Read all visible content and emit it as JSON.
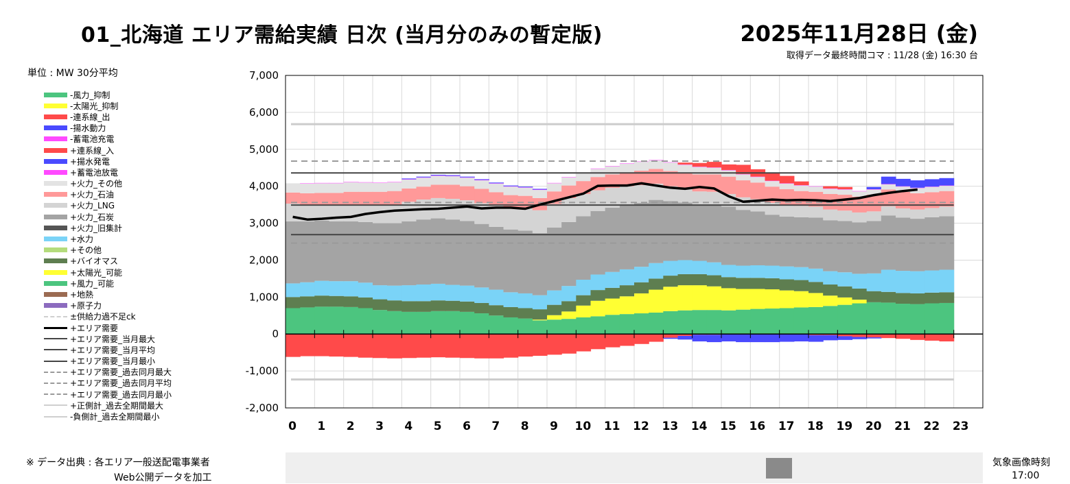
{
  "header": {
    "title": "01_北海道 エリア需給実績 日次 (当月分のみの暫定版)",
    "date": "2025年11月28日 (金)",
    "acquired": "取得データ最終時間コマ : 11/28 (金) 16:30 台",
    "unit": "単位 : MW 30分平均"
  },
  "legend": [
    {
      "label": "-風力_抑制",
      "color": "#4cc57f",
      "kind": "box"
    },
    {
      "label": "-太陽光_抑制",
      "color": "#ffff33",
      "kind": "box"
    },
    {
      "label": "-連系線_出",
      "color": "#ff4a4a",
      "kind": "box"
    },
    {
      "label": "-揚水動力",
      "color": "#4a4aff",
      "kind": "box"
    },
    {
      "label": "-蓄電池充電",
      "color": "#ff4aff",
      "kind": "box"
    },
    {
      "label": "+連系線_入",
      "color": "#ff4a4a",
      "kind": "box"
    },
    {
      "label": "+揚水発電",
      "color": "#4a4aff",
      "kind": "box"
    },
    {
      "label": "+蓄電池放電",
      "color": "#ff4aff",
      "kind": "box"
    },
    {
      "label": "+火力_その他",
      "color": "#e3e3e3",
      "kind": "box"
    },
    {
      "label": "+火力_石油",
      "color": "#ff9999",
      "kind": "box"
    },
    {
      "label": "+火力_LNG",
      "color": "#d4d4d4",
      "kind": "box"
    },
    {
      "label": "+火力_石炭",
      "color": "#a4a4a4",
      "kind": "box"
    },
    {
      "label": "+火力_旧集計",
      "color": "#555555",
      "kind": "box"
    },
    {
      "label": "+水力",
      "color": "#7ad3f7",
      "kind": "box"
    },
    {
      "label": "+その他",
      "color": "#b4dc7c",
      "kind": "box"
    },
    {
      "label": "+バイオマス",
      "color": "#5e7e50",
      "kind": "box"
    },
    {
      "label": "+太陽光_可能",
      "color": "#ffff33",
      "kind": "box"
    },
    {
      "label": "+風力_可能",
      "color": "#4cc57f",
      "kind": "box"
    },
    {
      "label": "+地熱",
      "color": "#9b6b52",
      "kind": "box"
    },
    {
      "label": "+原子力",
      "color": "#8c6bbf",
      "kind": "box"
    },
    {
      "label": "±供給力過不足ck",
      "color": "#cfcfcf",
      "kind": "dash",
      "width": 2
    },
    {
      "label": "+エリア需要",
      "color": "#000000",
      "kind": "line",
      "width": 3
    },
    {
      "label": "+エリア需要_当月最大",
      "color": "#444444",
      "kind": "line",
      "width": 2
    },
    {
      "label": "+エリア需要_当月平均",
      "color": "#444444",
      "kind": "line",
      "width": 2
    },
    {
      "label": "+エリア需要_当月最小",
      "color": "#444444",
      "kind": "line",
      "width": 2
    },
    {
      "label": "+エリア需要_過去同月最大",
      "color": "#999999",
      "kind": "dash",
      "width": 2
    },
    {
      "label": "+エリア需要_過去同月平均",
      "color": "#999999",
      "kind": "dash",
      "width": 2
    },
    {
      "label": "+エリア需要_過去同月最小",
      "color": "#999999",
      "kind": "dash",
      "width": 2
    },
    {
      "label": "+正側計_過去全期間最大",
      "color": "#cfcfcf",
      "kind": "line",
      "width": 2
    },
    {
      "label": "-負側計_過去全期間最小",
      "color": "#cfcfcf",
      "kind": "line",
      "width": 2
    }
  ],
  "footer": {
    "source_label": "※ データ出典 :   各エリア一般送配電事業者",
    "source_label2": "Web公開データを加工",
    "weather_label": "気象画像時刻",
    "weather_time": "17:00"
  },
  "chart_data": {
    "type": "area",
    "x_ticks": [
      "0",
      "1",
      "2",
      "3",
      "4",
      "5",
      "6",
      "7",
      "8",
      "9",
      "10",
      "11",
      "12",
      "13",
      "14",
      "15",
      "16",
      "17",
      "18",
      "19",
      "20",
      "21",
      "22",
      "23"
    ],
    "y_ticks": [
      "7,000",
      "6,000",
      "5,000",
      "4,000",
      "3,000",
      "2,000",
      "1,000",
      "0",
      "-1,000",
      "-2,000"
    ],
    "ylim": [
      -2000,
      7000
    ],
    "xlim": [
      0,
      24
    ],
    "slots_per_hour": 2,
    "stack_order": [
      "原子力",
      "地熱",
      "風力_可能",
      "太陽光_可能",
      "バイオマス",
      "その他",
      "水力",
      "火力_旧集計",
      "火力_石炭",
      "火力_LNG",
      "火力_石油",
      "火力_その他",
      "蓄電池放電",
      "揚水発電",
      "連系線_入"
    ],
    "series": [
      {
        "name": "+風力_可能",
        "color": "#4cc57f",
        "values": [
          700,
          720,
          740,
          740,
          730,
          700,
          650,
          620,
          600,
          600,
          620,
          620,
          600,
          560,
          500,
          450,
          420,
          370,
          390,
          410,
          450,
          480,
          520,
          540,
          560,
          580,
          620,
          640,
          650,
          650,
          640,
          660,
          680,
          690,
          700,
          720,
          730,
          760,
          790,
          830,
          860,
          850,
          820,
          810,
          830,
          840
        ]
      },
      {
        "name": "+太陽光_可能",
        "color": "#ffff33",
        "values": [
          0,
          0,
          0,
          0,
          0,
          0,
          0,
          0,
          0,
          0,
          0,
          0,
          0,
          0,
          0,
          0,
          0,
          20,
          120,
          200,
          320,
          420,
          440,
          480,
          540,
          620,
          660,
          680,
          670,
          640,
          600,
          560,
          540,
          520,
          480,
          440,
          380,
          280,
          200,
          100,
          0,
          0,
          0,
          0,
          0,
          0
        ]
      },
      {
        "name": "+バイオマス",
        "color": "#5e7e50",
        "values": [
          300,
          300,
          300,
          290,
          290,
          290,
          290,
          290,
          290,
          290,
          290,
          280,
          280,
          280,
          280,
          280,
          280,
          280,
          280,
          280,
          280,
          290,
          290,
          300,
          300,
          300,
          300,
          300,
          300,
          300,
          300,
          300,
          300,
          300,
          300,
          300,
          300,
          300,
          300,
          300,
          300,
          290,
          290,
          290,
          290,
          290
        ]
      },
      {
        "name": "+水力",
        "color": "#7ad3f7",
        "values": [
          370,
          380,
          400,
          400,
          410,
          400,
          380,
          400,
          430,
          450,
          450,
          430,
          430,
          420,
          420,
          400,
          400,
          380,
          390,
          410,
          420,
          420,
          430,
          430,
          420,
          420,
          400,
          380,
          360,
          350,
          330,
          330,
          340,
          340,
          350,
          350,
          360,
          360,
          380,
          400,
          480,
          600,
          600,
          600,
          600,
          610
        ]
      },
      {
        "name": "+火力_石炭",
        "color": "#a4a4a4",
        "values": [
          1680,
          1650,
          1630,
          1620,
          1620,
          1640,
          1680,
          1690,
          1730,
          1760,
          1770,
          1770,
          1750,
          1720,
          1700,
          1700,
          1700,
          1680,
          1700,
          1730,
          1720,
          1720,
          1740,
          1730,
          1730,
          1710,
          1620,
          1560,
          1520,
          1560,
          1580,
          1510,
          1460,
          1380,
          1350,
          1350,
          1380,
          1380,
          1390,
          1390,
          1420,
          1470,
          1440,
          1420,
          1440,
          1450
        ]
      },
      {
        "name": "+火力_LNG",
        "color": "#d4d4d4",
        "values": [
          480,
          450,
          420,
          430,
          440,
          460,
          480,
          500,
          530,
          540,
          550,
          560,
          560,
          560,
          570,
          580,
          600,
          620,
          640,
          650,
          600,
          560,
          540,
          520,
          480,
          440,
          400,
          370,
          360,
          350,
          340,
          340,
          330,
          320,
          320,
          310,
          300,
          290,
          280,
          270,
          260,
          250,
          250,
          250,
          250,
          260
        ]
      },
      {
        "name": "+火力_石油",
        "color": "#ff9999",
        "values": [
          300,
          310,
          330,
          340,
          360,
          360,
          370,
          370,
          360,
          350,
          360,
          380,
          380,
          390,
          370,
          350,
          340,
          330,
          340,
          340,
          350,
          360,
          360,
          380,
          390,
          400,
          410,
          440,
          460,
          470,
          470,
          460,
          450,
          440,
          420,
          400,
          400,
          420,
          430,
          430,
          450,
          450,
          450,
          440,
          430,
          420
        ]
      },
      {
        "name": "+火力_その他",
        "color": "#e3e3e3",
        "values": [
          250,
          260,
          260,
          260,
          260,
          250,
          240,
          240,
          240,
          240,
          240,
          230,
          230,
          230,
          230,
          230,
          220,
          220,
          220,
          220,
          220,
          220,
          220,
          230,
          240,
          230,
          230,
          210,
          200,
          180,
          170,
          160,
          150,
          150,
          150,
          150,
          140,
          140,
          140,
          140,
          140,
          140,
          140,
          140,
          140,
          140
        ]
      },
      {
        "name": "+蓄電池放電",
        "color": "#ff4aff",
        "values": [
          0,
          10,
          10,
          10,
          10,
          10,
          10,
          10,
          10,
          10,
          10,
          10,
          10,
          10,
          10,
          10,
          10,
          10,
          10,
          10,
          10,
          10,
          10,
          10,
          10,
          10,
          10,
          10,
          10,
          10,
          10,
          10,
          10,
          10,
          10,
          10,
          10,
          10,
          10,
          10,
          10,
          10,
          10,
          10,
          10,
          10
        ]
      },
      {
        "name": "+揚水発電",
        "color": "#4a4aff",
        "values": [
          0,
          0,
          0,
          0,
          0,
          0,
          0,
          0,
          20,
          20,
          20,
          20,
          20,
          20,
          20,
          20,
          20,
          20,
          0,
          0,
          0,
          0,
          0,
          0,
          0,
          0,
          0,
          0,
          0,
          0,
          0,
          0,
          0,
          0,
          0,
          0,
          0,
          0,
          0,
          0,
          60,
          200,
          200,
          200,
          200,
          200
        ]
      },
      {
        "name": "+連系線_入",
        "color": "#ff4a4a",
        "values": [
          0,
          0,
          0,
          0,
          0,
          0,
          0,
          0,
          0,
          0,
          0,
          0,
          0,
          0,
          0,
          0,
          0,
          0,
          0,
          0,
          0,
          0,
          0,
          0,
          0,
          0,
          0,
          50,
          100,
          150,
          150,
          250,
          200,
          200,
          200,
          100,
          0,
          60,
          60,
          0,
          0,
          0,
          0,
          0,
          0,
          0
        ]
      },
      {
        "name": "-連系線_出",
        "color": "#ff4a4a",
        "values": [
          -620,
          -600,
          -600,
          -610,
          -620,
          -640,
          -650,
          -660,
          -650,
          -640,
          -630,
          -640,
          -650,
          -660,
          -660,
          -640,
          -610,
          -590,
          -560,
          -530,
          -470,
          -410,
          -360,
          -320,
          -270,
          -210,
          -100,
          -50,
          -20,
          -20,
          0,
          0,
          0,
          0,
          0,
          0,
          -30,
          -30,
          -60,
          -80,
          -90,
          -110,
          -130,
          -160,
          -180,
          -200
        ]
      },
      {
        "name": "-揚水動力",
        "color": "#4a4aff",
        "values": [
          0,
          0,
          0,
          0,
          0,
          0,
          0,
          0,
          0,
          0,
          0,
          0,
          0,
          0,
          0,
          0,
          0,
          0,
          0,
          0,
          0,
          0,
          0,
          0,
          0,
          0,
          -30,
          -100,
          -180,
          -200,
          -200,
          -220,
          -220,
          -220,
          -210,
          -200,
          -180,
          -140,
          -100,
          -60,
          -30,
          0,
          0,
          0,
          0,
          0
        ]
      }
    ],
    "demand": {
      "name": "+エリア需要",
      "values": [
        3170,
        3100,
        3120,
        3150,
        3170,
        3250,
        3300,
        3340,
        3360,
        3380,
        3390,
        3420,
        3450,
        3400,
        3420,
        3420,
        3390,
        3500,
        3600,
        3700,
        3800,
        4010,
        4020,
        4020,
        4080,
        4020,
        3960,
        3930,
        3980,
        3940,
        3730,
        3580,
        3610,
        3640,
        3620,
        3630,
        3620,
        3600,
        3640,
        3680,
        3760,
        3820,
        3870,
        3910,
        null,
        null
      ]
    },
    "reference_lines": [
      {
        "name": "+エリア需要_当月最大",
        "value": 4360,
        "color": "#444444",
        "style": "solid"
      },
      {
        "name": "+エリア需要_当月平均",
        "value": 3490,
        "color": "#444444",
        "style": "solid"
      },
      {
        "name": "+エリア需要_当月最小",
        "value": 2690,
        "color": "#444444",
        "style": "solid"
      },
      {
        "name": "+エリア需要_過去同月最大",
        "value": 4680,
        "color": "#9a9a9a",
        "style": "dash"
      },
      {
        "name": "+エリア需要_過去同月平均",
        "value": 3560,
        "color": "#9a9a9a",
        "style": "dash"
      },
      {
        "name": "+エリア需要_過去同月最小",
        "value": 2460,
        "color": "#9a9a9a",
        "style": "dash"
      },
      {
        "name": "+正側計_過去全期間最大",
        "value": 5680,
        "color": "#cccccc",
        "style": "solid"
      },
      {
        "name": "-負側計_過去全期間最小",
        "value": -1230,
        "color": "#cccccc",
        "style": "solid"
      }
    ]
  }
}
